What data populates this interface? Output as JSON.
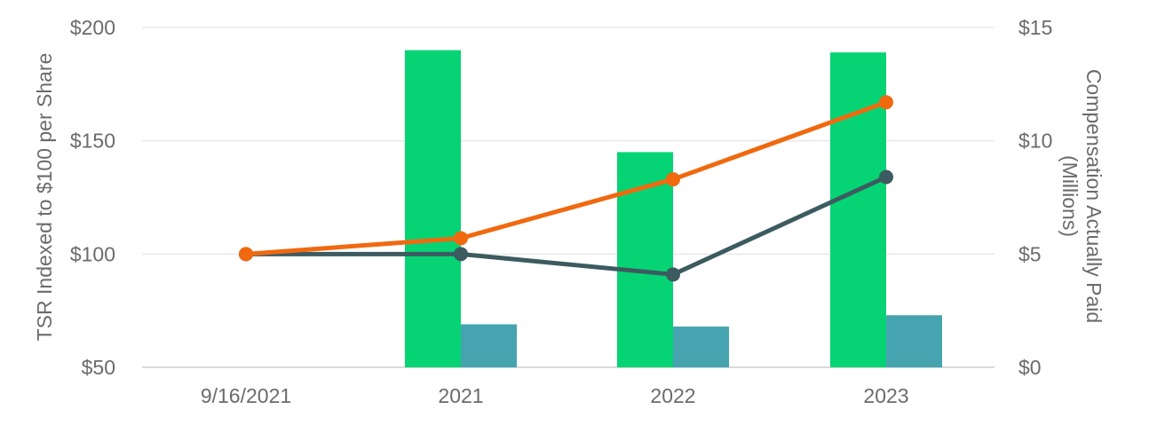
{
  "chart_data": {
    "type": "combo-bar-line",
    "categories": [
      "9/16/2021",
      "2021",
      "2022",
      "2023"
    ],
    "left_axis": {
      "title": "TSR Indexed to $100 per Share",
      "tick_labels": [
        "$200",
        "$150",
        "$100",
        "$50"
      ],
      "tick_values": [
        200,
        150,
        100,
        50
      ],
      "range": [
        50,
        200
      ]
    },
    "right_axis": {
      "title_line1": "Compensation Actually Paid",
      "title_line2": "(Millions)",
      "tick_labels": [
        "$15",
        "$10",
        "$5",
        "$0"
      ],
      "tick_values": [
        15,
        10,
        5,
        0
      ],
      "range": [
        0,
        15
      ]
    },
    "series": [
      {
        "name": "green-bars",
        "type": "bar",
        "axis": "right",
        "color": "#06D474",
        "values": [
          null,
          14.0,
          9.5,
          13.9
        ]
      },
      {
        "name": "teal-bars",
        "type": "bar",
        "axis": "right",
        "color": "#45A4AF",
        "values": [
          null,
          1.9,
          1.8,
          2.3
        ]
      },
      {
        "name": "dark-line",
        "type": "line",
        "axis": "left",
        "color": "#3C5B61",
        "values": [
          100,
          100,
          91,
          134
        ]
      },
      {
        "name": "orange-line",
        "type": "line",
        "axis": "left",
        "color": "#F0690F",
        "values": [
          100,
          107,
          133,
          167
        ]
      }
    ],
    "grid": {
      "visible": true,
      "color": "#E9E9E9",
      "axis_line_color": "#D9D9D9"
    },
    "legend": "none",
    "text_color": "#6B6B6B",
    "background": "#FFFFFF"
  }
}
